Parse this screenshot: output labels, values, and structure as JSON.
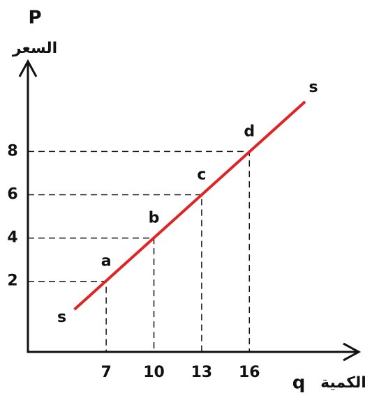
{
  "chart_data": {
    "type": "line",
    "y_label": "P",
    "y_label_sub": "السعر",
    "x_label": "q",
    "x_label_sub": "الكمية",
    "xlim": [
      2.08,
      22.7
    ],
    "ylim": [
      -1.26,
      12.1
    ],
    "xticks": [
      7,
      10,
      13,
      16
    ],
    "yticks": [
      2,
      4,
      6,
      8
    ],
    "line": {
      "start_label": "s",
      "end_label": "s",
      "x": [
        5,
        19.5
      ],
      "y": [
        0.7,
        10.3
      ],
      "color": "#e02424"
    },
    "points": {
      "labels": [
        "a",
        "b",
        "c",
        "d"
      ],
      "x": [
        7,
        10,
        13,
        16
      ],
      "y": [
        2,
        4,
        6,
        8
      ]
    }
  }
}
